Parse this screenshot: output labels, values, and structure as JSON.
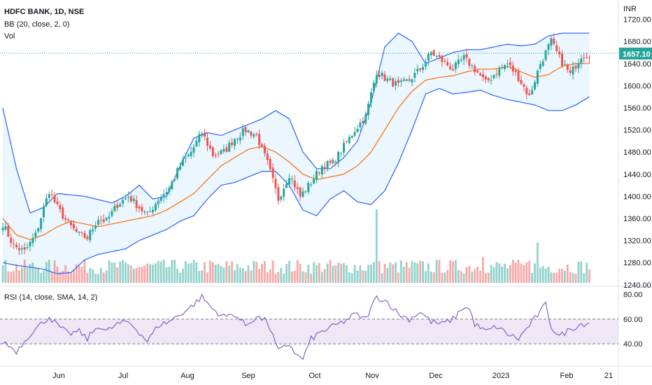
{
  "header": {
    "title": "HDFC BANK, 1D, NSE",
    "bb_label": "BB (20, close, 2, 0)",
    "vol_label": "Vol",
    "rsi_label": "RSI (14, close, SMA, 14, 2)",
    "currency": "INR",
    "last_price": "1657.10"
  },
  "colors": {
    "up": "#26a69a",
    "down": "#ef5350",
    "bb_band": "#2962ff",
    "bb_basis": "#ff6d00",
    "bb_fill": "#e3f2fd",
    "rsi_line": "#7e57c2",
    "rsi_fill": "#ede7f6",
    "price_line": "#26a69a"
  },
  "chart_data": [
    {
      "type": "candlestick",
      "title": "HDFC BANK, 1D, NSE",
      "ylabel": "INR",
      "ylim": [
        1236,
        1722
      ],
      "y_ticks": [
        "1720.00",
        "1680.00",
        "1640.00",
        "1600.00",
        "1560.00",
        "1520.00",
        "1480.00",
        "1440.00",
        "1400.00",
        "1360.00",
        "1320.00",
        "1280.00",
        "1240.00"
      ],
      "x_labels": [
        "Jun",
        "Jul",
        "Aug",
        "Sep",
        "Oct",
        "Nov",
        "Dec",
        "2023",
        "Feb",
        "21"
      ],
      "last_price": 1657.1,
      "close_anchors": [
        [
          0,
          1350
        ],
        [
          4,
          1310
        ],
        [
          8,
          1300
        ],
        [
          12,
          1330
        ],
        [
          17,
          1410
        ],
        [
          20,
          1380
        ],
        [
          24,
          1350
        ],
        [
          28,
          1330
        ],
        [
          31,
          1325
        ],
        [
          35,
          1360
        ],
        [
          38,
          1355
        ],
        [
          42,
          1385
        ],
        [
          46,
          1400
        ],
        [
          49,
          1385
        ],
        [
          53,
          1365
        ],
        [
          57,
          1395
        ],
        [
          61,
          1415
        ],
        [
          65,
          1455
        ],
        [
          69,
          1480
        ],
        [
          73,
          1515
        ],
        [
          77,
          1475
        ],
        [
          81,
          1480
        ],
        [
          85,
          1505
        ],
        [
          89,
          1520
        ],
        [
          93,
          1510
        ],
        [
          97,
          1460
        ],
        [
          101,
          1395
        ],
        [
          105,
          1440
        ],
        [
          109,
          1400
        ],
        [
          113,
          1425
        ],
        [
          117,
          1455
        ],
        [
          121,
          1460
        ],
        [
          125,
          1490
        ],
        [
          129,
          1520
        ],
        [
          133,
          1545
        ],
        [
          137,
          1625
        ],
        [
          141,
          1610
        ],
        [
          145,
          1600
        ],
        [
          149,
          1610
        ],
        [
          153,
          1630
        ],
        [
          157,
          1660
        ],
        [
          161,
          1645
        ],
        [
          165,
          1630
        ],
        [
          169,
          1650
        ],
        [
          173,
          1630
        ],
        [
          177,
          1605
        ],
        [
          181,
          1625
        ],
        [
          185,
          1640
        ],
        [
          189,
          1615
        ],
        [
          193,
          1580
        ],
        [
          197,
          1640
        ],
        [
          201,
          1680
        ],
        [
          204,
          1650
        ],
        [
          208,
          1620
        ],
        [
          212,
          1655
        ],
        [
          215,
          1657
        ]
      ],
      "bollinger_upper_anchors": [
        [
          0,
          1560
        ],
        [
          5,
          1450
        ],
        [
          10,
          1370
        ],
        [
          15,
          1380
        ],
        [
          20,
          1405
        ],
        [
          30,
          1400
        ],
        [
          40,
          1388
        ],
        [
          45,
          1400
        ],
        [
          50,
          1420
        ],
        [
          55,
          1395
        ],
        [
          60,
          1400
        ],
        [
          65,
          1455
        ],
        [
          70,
          1505
        ],
        [
          75,
          1515
        ],
        [
          80,
          1510
        ],
        [
          85,
          1520
        ],
        [
          90,
          1530
        ],
        [
          95,
          1540
        ],
        [
          100,
          1555
        ],
        [
          105,
          1540
        ],
        [
          110,
          1480
        ],
        [
          115,
          1450
        ],
        [
          120,
          1450
        ],
        [
          125,
          1470
        ],
        [
          130,
          1500
        ],
        [
          135,
          1570
        ],
        [
          140,
          1670
        ],
        [
          145,
          1695
        ],
        [
          150,
          1680
        ],
        [
          155,
          1640
        ],
        [
          160,
          1650
        ],
        [
          165,
          1660
        ],
        [
          170,
          1665
        ],
        [
          175,
          1665
        ],
        [
          180,
          1670
        ],
        [
          185,
          1675
        ],
        [
          190,
          1672
        ],
        [
          195,
          1675
        ],
        [
          200,
          1690
        ],
        [
          205,
          1695
        ],
        [
          210,
          1695
        ],
        [
          215,
          1695
        ]
      ],
      "bollinger_basis_anchors": [
        [
          0,
          1360
        ],
        [
          5,
          1330
        ],
        [
          10,
          1322
        ],
        [
          15,
          1330
        ],
        [
          20,
          1345
        ],
        [
          25,
          1355
        ],
        [
          30,
          1350
        ],
        [
          35,
          1345
        ],
        [
          40,
          1350
        ],
        [
          45,
          1355
        ],
        [
          50,
          1360
        ],
        [
          55,
          1365
        ],
        [
          60,
          1375
        ],
        [
          65,
          1390
        ],
        [
          70,
          1405
        ],
        [
          75,
          1430
        ],
        [
          80,
          1455
        ],
        [
          85,
          1470
        ],
        [
          90,
          1485
        ],
        [
          95,
          1490
        ],
        [
          100,
          1480
        ],
        [
          105,
          1462
        ],
        [
          110,
          1440
        ],
        [
          115,
          1430
        ],
        [
          120,
          1435
        ],
        [
          125,
          1440
        ],
        [
          130,
          1455
        ],
        [
          135,
          1480
        ],
        [
          140,
          1520
        ],
        [
          145,
          1560
        ],
        [
          150,
          1590
        ],
        [
          155,
          1610
        ],
        [
          160,
          1615
        ],
        [
          165,
          1618
        ],
        [
          170,
          1625
        ],
        [
          175,
          1630
        ],
        [
          180,
          1630
        ],
        [
          185,
          1635
        ],
        [
          190,
          1625
        ],
        [
          195,
          1615
        ],
        [
          200,
          1620
        ],
        [
          205,
          1635
        ],
        [
          210,
          1640
        ],
        [
          215,
          1640
        ]
      ],
      "bollinger_lower_anchors": [
        [
          0,
          1280
        ],
        [
          5,
          1275
        ],
        [
          10,
          1272
        ],
        [
          15,
          1268
        ],
        [
          20,
          1260
        ],
        [
          25,
          1262
        ],
        [
          30,
          1285
        ],
        [
          35,
          1295
        ],
        [
          40,
          1300
        ],
        [
          45,
          1305
        ],
        [
          50,
          1320
        ],
        [
          55,
          1330
        ],
        [
          60,
          1340
        ],
        [
          65,
          1355
        ],
        [
          70,
          1365
        ],
        [
          75,
          1395
        ],
        [
          80,
          1420
        ],
        [
          85,
          1425
        ],
        [
          90,
          1435
        ],
        [
          95,
          1445
        ],
        [
          100,
          1445
        ],
        [
          105,
          1420
        ],
        [
          110,
          1375
        ],
        [
          115,
          1365
        ],
        [
          120,
          1395
        ],
        [
          125,
          1410
        ],
        [
          130,
          1390
        ],
        [
          135,
          1385
        ],
        [
          140,
          1410
        ],
        [
          145,
          1460
        ],
        [
          150,
          1520
        ],
        [
          155,
          1585
        ],
        [
          160,
          1595
        ],
        [
          165,
          1585
        ],
        [
          170,
          1588
        ],
        [
          175,
          1592
        ],
        [
          180,
          1582
        ],
        [
          185,
          1575
        ],
        [
          190,
          1570
        ],
        [
          195,
          1565
        ],
        [
          200,
          1555
        ],
        [
          205,
          1555
        ],
        [
          210,
          1565
        ],
        [
          215,
          1580
        ]
      ]
    },
    {
      "type": "bar",
      "title": "Vol",
      "description_values": "relative daily volume",
      "spikes": [
        [
          137,
          1.0
        ],
        [
          196,
          0.55
        ],
        [
          193,
          0.3
        ],
        [
          176,
          0.35
        ]
      ],
      "base_level": 0.22
    },
    {
      "type": "line",
      "title": "RSI (14, close, SMA, 14, 2)",
      "ylim": [
        22,
        86
      ],
      "y_ticks": [
        "80.00",
        "60.00",
        "40.00"
      ],
      "overbought": 60,
      "oversold": 40,
      "anchors": [
        [
          0,
          42
        ],
        [
          5,
          34
        ],
        [
          10,
          48
        ],
        [
          17,
          62
        ],
        [
          20,
          55
        ],
        [
          24,
          48
        ],
        [
          28,
          50
        ],
        [
          31,
          44
        ],
        [
          35,
          55
        ],
        [
          38,
          50
        ],
        [
          42,
          56
        ],
        [
          46,
          58
        ],
        [
          49,
          52
        ],
        [
          53,
          42
        ],
        [
          57,
          55
        ],
        [
          61,
          58
        ],
        [
          65,
          64
        ],
        [
          69,
          70
        ],
        [
          73,
          78
        ],
        [
          77,
          68
        ],
        [
          81,
          62
        ],
        [
          85,
          64
        ],
        [
          89,
          55
        ],
        [
          93,
          62
        ],
        [
          97,
          58
        ],
        [
          101,
          34
        ],
        [
          105,
          40
        ],
        [
          108,
          30
        ],
        [
          110,
          28
        ],
        [
          113,
          44
        ],
        [
          117,
          50
        ],
        [
          121,
          54
        ],
        [
          125,
          58
        ],
        [
          129,
          64
        ],
        [
          133,
          60
        ],
        [
          137,
          78
        ],
        [
          141,
          74
        ],
        [
          145,
          64
        ],
        [
          149,
          60
        ],
        [
          153,
          66
        ],
        [
          157,
          58
        ],
        [
          161,
          56
        ],
        [
          165,
          60
        ],
        [
          169,
          70
        ],
        [
          171,
          68
        ],
        [
          173,
          56
        ],
        [
          177,
          50
        ],
        [
          181,
          54
        ],
        [
          185,
          48
        ],
        [
          189,
          44
        ],
        [
          193,
          55
        ],
        [
          197,
          66
        ],
        [
          199,
          72
        ],
        [
          201,
          54
        ],
        [
          204,
          46
        ],
        [
          208,
          52
        ],
        [
          212,
          56
        ],
        [
          215,
          57
        ]
      ]
    }
  ]
}
